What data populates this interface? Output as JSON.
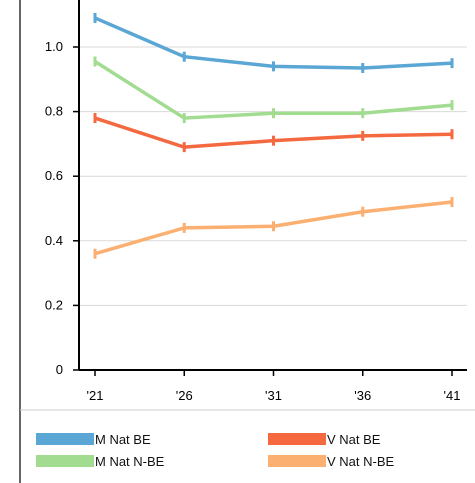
{
  "chart_data": {
    "type": "line",
    "title": "",
    "xlabel": "",
    "ylabel": "",
    "categories": [
      "'21",
      "'26",
      "'31",
      "'36",
      "'41"
    ],
    "y_ticks": [
      0,
      0.2,
      0.4,
      0.6,
      0.8,
      1.0
    ],
    "y_tick_labels": [
      "0",
      "0.2",
      "0.4",
      "0.6",
      "0.8",
      "1.0"
    ],
    "ylim": [
      0,
      1.13
    ],
    "grid": "horizontal",
    "legend_placement": "bottom",
    "series": [
      {
        "name": "M Nat BE",
        "color": "#5aa6d4",
        "values": [
          1.09,
          0.97,
          0.94,
          0.935,
          0.95
        ]
      },
      {
        "name": "V Nat BE",
        "color": "#f4693f",
        "values": [
          0.78,
          0.69,
          0.71,
          0.725,
          0.73
        ]
      },
      {
        "name": "M Nat N-BE",
        "color": "#a2dc90",
        "values": [
          0.955,
          0.78,
          0.795,
          0.795,
          0.82
        ]
      },
      {
        "name": "V Nat N-BE",
        "color": "#fbb071",
        "values": [
          0.36,
          0.44,
          0.445,
          0.49,
          0.52
        ]
      }
    ]
  }
}
